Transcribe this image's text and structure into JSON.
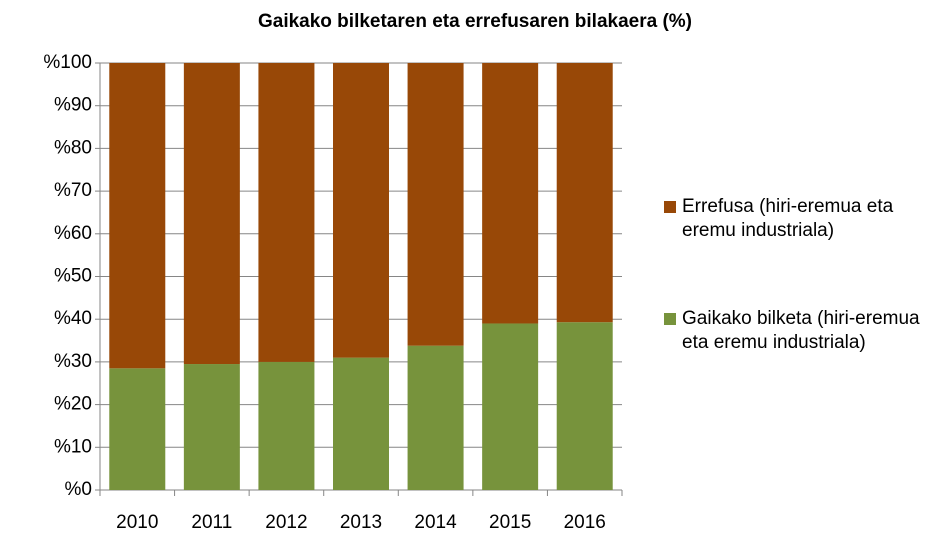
{
  "chart_data": {
    "type": "stacked_bar",
    "title": "Gaikako bilketaren eta errefusaren bilakaera (%)",
    "categories": [
      "2010",
      "2011",
      "2012",
      "2013",
      "2014",
      "2015",
      "2016"
    ],
    "series": [
      {
        "name": "Gaikako bilketa (hiri-eremua eta eremu industriala)",
        "color": "#77933c",
        "values": [
          28.5,
          29.5,
          30,
          31,
          33.8,
          39,
          39.3
        ]
      },
      {
        "name": "Errefusa (hiri-eremua eta eremu industriala)",
        "color": "#984807",
        "values": [
          71.5,
          70.5,
          70,
          69,
          66.2,
          61,
          60.7
        ]
      }
    ],
    "ylim": [
      0,
      100
    ],
    "yticks": [
      {
        "value": 0,
        "label": "%0"
      },
      {
        "value": 10,
        "label": "%10"
      },
      {
        "value": 20,
        "label": "%20"
      },
      {
        "value": 30,
        "label": "%30"
      },
      {
        "value": 40,
        "label": "%40"
      },
      {
        "value": 50,
        "label": "%50"
      },
      {
        "value": 60,
        "label": "%60"
      },
      {
        "value": 70,
        "label": "%70"
      },
      {
        "value": 80,
        "label": "%80"
      },
      {
        "value": 90,
        "label": "%90"
      },
      {
        "value": 100,
        "label": "%100"
      }
    ],
    "grid": true
  }
}
